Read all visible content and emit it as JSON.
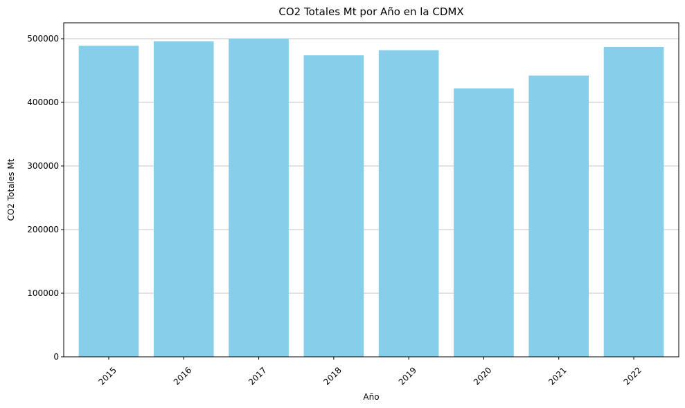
{
  "chart_data": {
    "type": "bar",
    "title": "CO2 Totales Mt por Año en la CDMX",
    "xlabel": "Año",
    "ylabel": "CO2 Totales Mt",
    "categories": [
      "2015",
      "2016",
      "2017",
      "2018",
      "2019",
      "2020",
      "2021",
      "2022"
    ],
    "values": [
      489000,
      496000,
      500000,
      474000,
      482000,
      422000,
      442000,
      487000
    ],
    "ylim": [
      0,
      525000
    ],
    "yticks": [
      0,
      100000,
      200000,
      300000,
      400000,
      500000
    ],
    "grid": "y",
    "bar_color": "#87ceeb",
    "xtick_rotation": 45
  }
}
